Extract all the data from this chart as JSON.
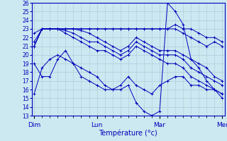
{
  "title": "",
  "xlabel": "Température (°c)",
  "ylabel": "",
  "background_color": "#cce8f0",
  "grid_color": "#aaccdd",
  "line_color": "#0000bb",
  "marker": "+",
  "ylim": [
    13,
    26
  ],
  "yticks": [
    13,
    14,
    15,
    16,
    17,
    18,
    19,
    20,
    21,
    22,
    23,
    24,
    25,
    26
  ],
  "day_labels": [
    "Dim",
    "Lun",
    "Mar",
    "Mer"
  ],
  "day_positions": [
    0,
    8,
    16,
    24
  ],
  "n_points": 25,
  "lines": [
    [
      15.5,
      18.5,
      19.5,
      20.0,
      19.5,
      19.0,
      18.5,
      18.0,
      17.5,
      16.5,
      16.0,
      16.0,
      16.5,
      14.5,
      13.5,
      13.0,
      13.5,
      26.0,
      25.0,
      23.5,
      19.5,
      18.5,
      17.0,
      16.0,
      15.5
    ],
    [
      22.5,
      23.0,
      23.0,
      23.0,
      22.5,
      22.0,
      21.5,
      21.0,
      20.5,
      20.5,
      20.0,
      19.5,
      20.0,
      21.0,
      20.5,
      20.0,
      19.5,
      19.0,
      19.0,
      18.5,
      17.5,
      17.0,
      16.5,
      16.0,
      15.5
    ],
    [
      21.5,
      23.0,
      23.0,
      23.0,
      22.8,
      22.5,
      22.0,
      21.5,
      21.5,
      21.0,
      20.5,
      20.0,
      20.5,
      21.5,
      21.0,
      20.5,
      20.0,
      20.0,
      20.0,
      19.5,
      18.5,
      18.0,
      17.5,
      17.0,
      16.5
    ],
    [
      21.0,
      23.0,
      23.0,
      23.0,
      23.0,
      23.0,
      22.8,
      22.5,
      22.0,
      21.5,
      21.0,
      20.5,
      21.0,
      22.0,
      21.5,
      21.0,
      20.5,
      20.5,
      20.5,
      20.0,
      19.5,
      19.0,
      18.5,
      17.5,
      17.0
    ],
    [
      21.0,
      23.0,
      23.0,
      23.0,
      23.0,
      23.0,
      23.0,
      23.0,
      23.0,
      23.0,
      23.0,
      23.0,
      23.0,
      23.0,
      23.0,
      23.0,
      23.0,
      23.0,
      23.0,
      22.5,
      22.0,
      21.5,
      21.0,
      21.5,
      21.0
    ],
    [
      21.0,
      23.0,
      23.0,
      23.0,
      23.0,
      23.0,
      23.0,
      23.0,
      23.0,
      23.0,
      23.0,
      23.0,
      23.0,
      23.0,
      23.0,
      23.0,
      23.0,
      23.0,
      23.5,
      23.0,
      23.0,
      22.5,
      22.0,
      22.0,
      21.5
    ],
    [
      19.0,
      17.5,
      17.5,
      19.5,
      20.5,
      19.0,
      17.5,
      17.0,
      16.5,
      16.0,
      16.0,
      16.5,
      17.5,
      16.5,
      16.0,
      15.5,
      16.5,
      17.0,
      17.5,
      17.5,
      16.5,
      16.5,
      16.0,
      16.0,
      15.0
    ]
  ]
}
